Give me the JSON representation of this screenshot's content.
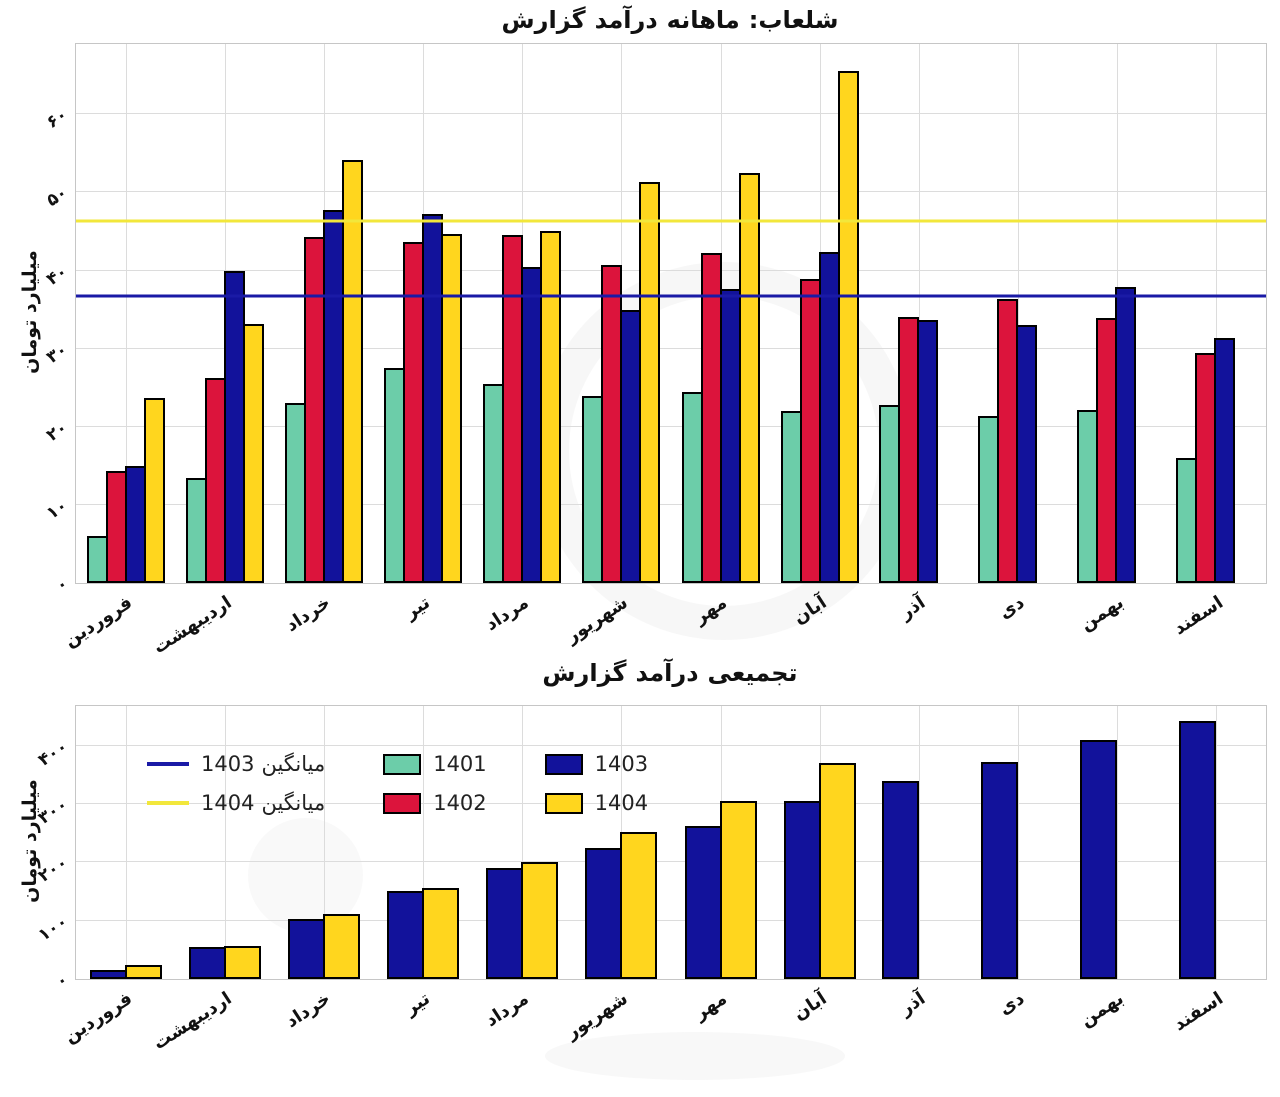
{
  "figure": {
    "background": "#ffffff",
    "grid_color": "#dcdcdc",
    "spine_color": "#c6c6c6"
  },
  "chart_data": [
    {
      "type": "bar",
      "title": "گزارش درآمد ماهانه: شلعاب",
      "title_words_visual": [
        "گزارش",
        "درآمد",
        "ماهانه",
        ":شلعاب"
      ],
      "xlabel": "",
      "ylabel": "میلیارد تومان",
      "grid": true,
      "legend": null,
      "ylim": [
        0,
        69
      ],
      "yticks": [
        0,
        10,
        20,
        30,
        40,
        50,
        60
      ],
      "ytick_labels": [
        "۰",
        "۱۰",
        "۲۰",
        "۳۰",
        "۴۰",
        "۵۰",
        "۶۰"
      ],
      "categories": [
        "فروردین",
        "اردیبهشت",
        "خرداد",
        "تیر",
        "مرداد",
        "شهریور",
        "مهر",
        "آبان",
        "آذر",
        "دی",
        "بهمن",
        "اسفند"
      ],
      "series": [
        {
          "name": "1401",
          "color": "#6CCDA9",
          "values": [
            6.0,
            13.5,
            23.0,
            27.5,
            25.5,
            24.0,
            24.5,
            22.0,
            22.8,
            21.4,
            22.2,
            16.0
          ]
        },
        {
          "name": "1402",
          "color": "#DC143C",
          "values": [
            14.3,
            26.3,
            44.3,
            43.7,
            44.5,
            40.7,
            42.3,
            38.9,
            34.1,
            36.3,
            33.9,
            29.5
          ]
        },
        {
          "name": "1403",
          "color": "#12129B",
          "values": [
            15.0,
            40.0,
            47.8,
            47.3,
            40.4,
            34.9,
            37.7,
            42.4,
            33.7,
            33.0,
            37.9,
            31.4
          ]
        },
        {
          "name": "1404",
          "color": "#FFD61E",
          "values": [
            23.7,
            33.2,
            54.2,
            44.7,
            45.0,
            51.3,
            52.5,
            65.6,
            null,
            null,
            null,
            null
          ]
        }
      ],
      "mean_lines": [
        {
          "series": "1403",
          "label": "میانگین 1403",
          "label_visual": [
            "1403",
            "میانگین"
          ],
          "value": 36.8,
          "color": "#1A1AA6"
        },
        {
          "series": "1404",
          "label": "میانگین 1404",
          "label_visual": [
            "1404",
            "میانگین"
          ],
          "value": 46.3,
          "color": "#F2E73B"
        }
      ]
    },
    {
      "type": "bar",
      "title": "گزارش درآمد تجمیعی",
      "title_words_visual": [
        "گزارش",
        "درآمد",
        "تجمیعی"
      ],
      "xlabel": "",
      "ylabel": "میلیارد تومان",
      "grid": true,
      "legend_position": "upper left",
      "ylim": [
        0,
        468
      ],
      "yticks": [
        0,
        100,
        200,
        300,
        400
      ],
      "ytick_labels": [
        "۰",
        "۱۰۰",
        "۲۰۰",
        "۳۰۰",
        "۴۰۰"
      ],
      "categories": [
        "فروردین",
        "اردیبهشت",
        "خرداد",
        "تیر",
        "مرداد",
        "شهریور",
        "مهر",
        "آبان",
        "آذر",
        "دی",
        "بهمن",
        "اسفند"
      ],
      "series": [
        {
          "name": "1403",
          "color": "#12129B",
          "values": [
            15.0,
            55.0,
            102.8,
            150.1,
            190.5,
            225.4,
            263.1,
            305.5,
            339.2,
            372.2,
            410.1,
            441.5
          ]
        },
        {
          "name": "1404",
          "color": "#FFD61E",
          "values": [
            23.7,
            56.9,
            111.1,
            155.8,
            200.8,
            252.1,
            304.6,
            370.2,
            null,
            null,
            null,
            null
          ]
        }
      ],
      "mean_lines": [],
      "legend": {
        "columns": [
          {
            "items": [
              {
                "key": "mean-1403",
                "swatch": "line",
                "color": "#1A1AA6",
                "label_parts": [
                  "1403",
                  "میانگین"
                ]
              },
              {
                "key": "mean-1404",
                "swatch": "line",
                "color": "#F2E73B",
                "label_parts": [
                  "1404",
                  "میانگین"
                ]
              }
            ]
          },
          {
            "items": [
              {
                "key": "1401",
                "swatch": "patch",
                "color": "#6CCDA9",
                "label_parts": [
                  "1401"
                ]
              },
              {
                "key": "1402",
                "swatch": "patch",
                "color": "#DC143C",
                "label_parts": [
                  "1402"
                ]
              }
            ]
          },
          {
            "items": [
              {
                "key": "1403",
                "swatch": "patch",
                "color": "#12129B",
                "label_parts": [
                  "1403"
                ]
              },
              {
                "key": "1404",
                "swatch": "patch",
                "color": "#FFD61E",
                "label_parts": [
                  "1404"
                ]
              }
            ]
          }
        ]
      }
    }
  ]
}
